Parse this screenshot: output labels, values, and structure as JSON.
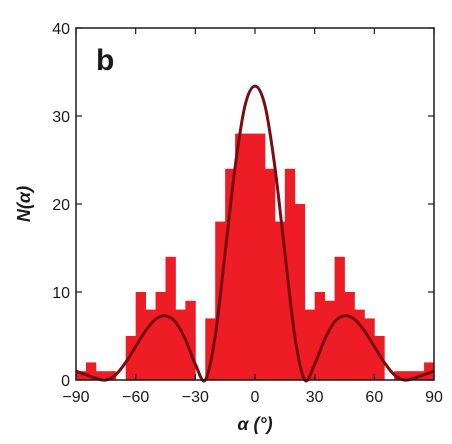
{
  "chart_data": {
    "type": "bar",
    "panel_label": "b",
    "xlabel": "α (°)",
    "ylabel": "N(α)",
    "xlim": [
      -90,
      90
    ],
    "ylim": [
      0,
      40
    ],
    "xticks": [
      -90,
      -60,
      -30,
      0,
      30,
      60,
      90
    ],
    "yticks": [
      0,
      10,
      20,
      30,
      40
    ],
    "xtick_labels": [
      "−90",
      "−60",
      "−30",
      "0",
      "30",
      "60",
      "90"
    ],
    "ytick_labels": [
      "0",
      "10",
      "20",
      "30",
      "40"
    ],
    "grid": false,
    "legend": "none",
    "histogram": {
      "bin_width": 5,
      "bin_starts": [
        -90,
        -85,
        -80,
        -75,
        -70,
        -65,
        -60,
        -55,
        -50,
        -45,
        -40,
        -35,
        -30,
        -25,
        -20,
        -15,
        -10,
        -5,
        0,
        5,
        10,
        15,
        20,
        25,
        30,
        35,
        40,
        45,
        50,
        55,
        60,
        65,
        70,
        75,
        80,
        85
      ],
      "counts": [
        1,
        2,
        1,
        1,
        0,
        5,
        10,
        8,
        10,
        14,
        8,
        9,
        0,
        7,
        18,
        24,
        28,
        28,
        28,
        24,
        18,
        24,
        20,
        8,
        10,
        9,
        14,
        10,
        8,
        7,
        5,
        0,
        1,
        1,
        1,
        2
      ],
      "color": "#ee1c25"
    },
    "curve": {
      "color": "#7a0c10",
      "x": [
        -90,
        -85,
        -80,
        -75,
        -70,
        -65,
        -60,
        -55,
        -50,
        -45,
        -40,
        -35,
        -30,
        -25,
        -20,
        -15,
        -10,
        -5,
        0,
        5,
        10,
        15,
        20,
        25,
        30,
        35,
        40,
        45,
        50,
        55,
        60,
        65,
        70,
        75,
        80,
        85,
        90
      ],
      "y": [
        1.0,
        0.6,
        0.2,
        0,
        0.6,
        2.0,
        3.8,
        5.6,
        6.9,
        7.3,
        6.6,
        4.6,
        1.8,
        0,
        5.0,
        14.5,
        24.2,
        31.2,
        33.4,
        31.2,
        24.2,
        14.5,
        5.0,
        0,
        1.8,
        4.6,
        6.6,
        7.3,
        6.9,
        5.6,
        3.8,
        2.0,
        0.6,
        0,
        0.2,
        0.6,
        1.0
      ]
    }
  }
}
